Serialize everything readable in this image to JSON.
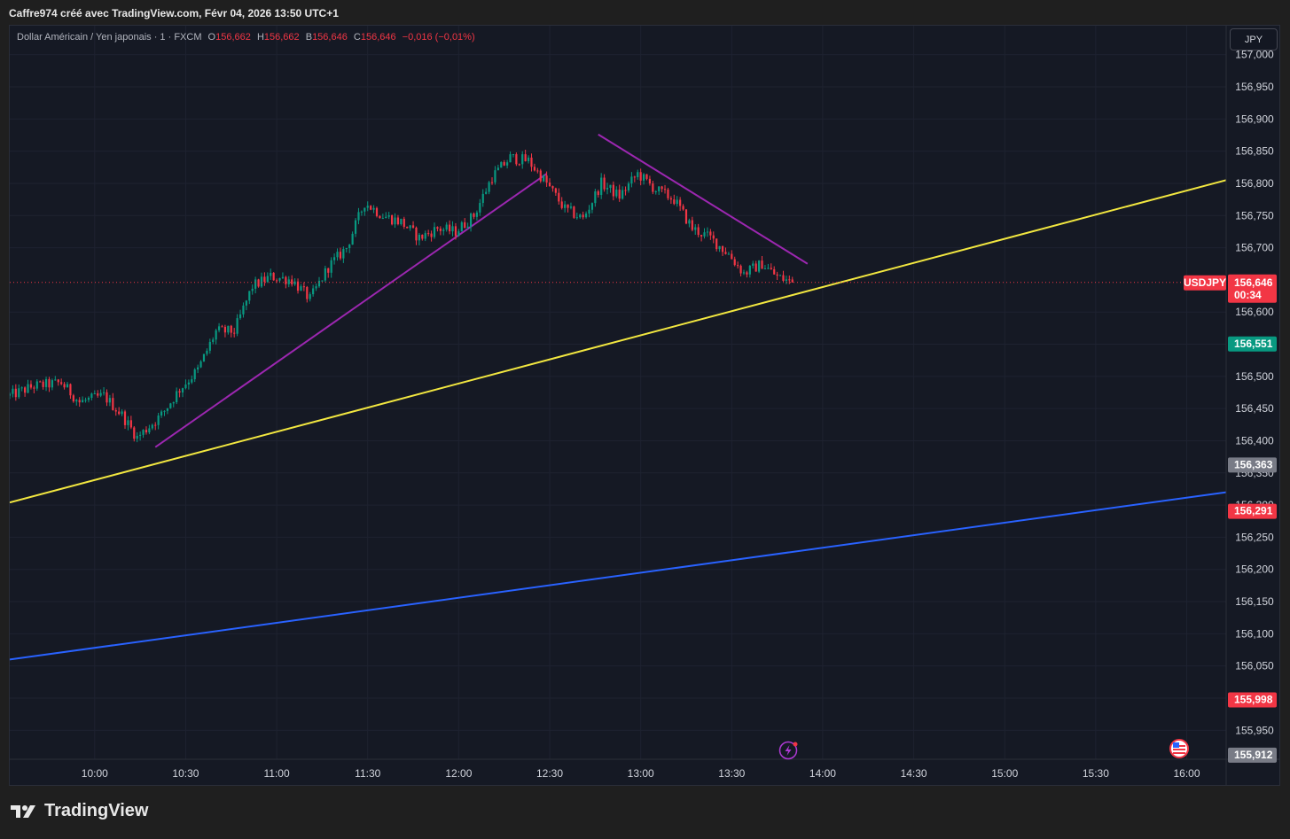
{
  "header": {
    "title": "Caffre974 créé avec TradingView.com, Févr 04, 2026 13:50 UTC+1"
  },
  "legend": {
    "symbol": "Dollar Américain / Yen japonais · 1 · FXCM",
    "o_label": "O",
    "o_value": "156,662",
    "h_label": "H",
    "h_value": "156,662",
    "b_label": "B",
    "b_value": "156,646",
    "c_label": "C",
    "c_value": "156,646",
    "change": "−0,016 (−0,01%)"
  },
  "currency_button": {
    "label": "JPY"
  },
  "footer": {
    "logo_text": "TradingView"
  },
  "colors": {
    "background": "#151924",
    "grid": "#1e2230",
    "up": "#089981",
    "down": "#f23645",
    "yellow_line": "#f2e740",
    "purple_line": "#9c27b0",
    "blue_line": "#2962ff"
  },
  "icons": {
    "footer": "tradingview-logo-icon",
    "lightning": "lightning-icon",
    "flag": "us-flag-icon"
  },
  "chart_data": {
    "type": "candlestick",
    "symbol": "USDJPY",
    "interval": "1",
    "ylim": [
      155.905,
      157.045
    ],
    "xlim": [
      "09:32",
      "16:13"
    ],
    "y_ticks": [
      "157,000",
      "156,950",
      "156,900",
      "156,850",
      "156,800",
      "156,750",
      "156,700",
      "156,600",
      "156,550",
      "156,500",
      "156,450",
      "156,400",
      "156,350",
      "156,300",
      "156,250",
      "156,200",
      "156,150",
      "156,100",
      "156,050",
      "156,000",
      "155,950"
    ],
    "y_tick_values": [
      157.0,
      156.95,
      156.9,
      156.85,
      156.8,
      156.75,
      156.7,
      156.6,
      156.55,
      156.5,
      156.45,
      156.4,
      156.35,
      156.3,
      156.25,
      156.2,
      156.15,
      156.1,
      156.05,
      156.0,
      155.95
    ],
    "x_ticks": [
      "10:00",
      "10:30",
      "11:00",
      "11:30",
      "12:00",
      "12:30",
      "13:00",
      "13:30",
      "14:00",
      "14:30",
      "15:00",
      "15:30",
      "16:00"
    ],
    "grid": true,
    "candle_anchors": [
      {
        "t": "09:32",
        "p": 156.47
      },
      {
        "t": "09:40",
        "p": 156.485
      },
      {
        "t": "09:49",
        "p": 156.49
      },
      {
        "t": "09:55",
        "p": 156.46
      },
      {
        "t": "10:03",
        "p": 156.47
      },
      {
        "t": "10:09",
        "p": 156.44
      },
      {
        "t": "10:14",
        "p": 156.405
      },
      {
        "t": "10:22",
        "p": 156.44
      },
      {
        "t": "10:28",
        "p": 156.48
      },
      {
        "t": "10:34",
        "p": 156.51
      },
      {
        "t": "10:40",
        "p": 156.57
      },
      {
        "t": "10:46",
        "p": 156.57
      },
      {
        "t": "10:52",
        "p": 156.64
      },
      {
        "t": "10:58",
        "p": 156.655
      },
      {
        "t": "11:05",
        "p": 156.65
      },
      {
        "t": "11:11",
        "p": 156.62
      },
      {
        "t": "11:17",
        "p": 156.67
      },
      {
        "t": "11:23",
        "p": 156.7
      },
      {
        "t": "11:29",
        "p": 156.77
      },
      {
        "t": "11:35",
        "p": 156.75
      },
      {
        "t": "11:41",
        "p": 156.74
      },
      {
        "t": "11:47",
        "p": 156.715
      },
      {
        "t": "11:53",
        "p": 156.73
      },
      {
        "t": "11:59",
        "p": 156.725
      },
      {
        "t": "12:05",
        "p": 156.75
      },
      {
        "t": "12:11",
        "p": 156.81
      },
      {
        "t": "12:17",
        "p": 156.84
      },
      {
        "t": "12:23",
        "p": 156.835
      },
      {
        "t": "12:29",
        "p": 156.8
      },
      {
        "t": "12:35",
        "p": 156.76
      },
      {
        "t": "12:41",
        "p": 156.745
      },
      {
        "t": "12:47",
        "p": 156.8
      },
      {
        "t": "12:53",
        "p": 156.78
      },
      {
        "t": "12:59",
        "p": 156.815
      },
      {
        "t": "13:05",
        "p": 156.79
      },
      {
        "t": "13:11",
        "p": 156.775
      },
      {
        "t": "13:17",
        "p": 156.73
      },
      {
        "t": "13:23",
        "p": 156.715
      },
      {
        "t": "13:29",
        "p": 156.69
      },
      {
        "t": "13:34",
        "p": 156.66
      },
      {
        "t": "13:40",
        "p": 156.675
      },
      {
        "t": "13:45",
        "p": 156.655
      },
      {
        "t": "13:50",
        "p": 156.646
      }
    ],
    "trendlines": [
      {
        "name": "yellow",
        "color": "#f2e740",
        "x1": "09:32",
        "y1": 156.304,
        "x2": "16:13",
        "y2": 156.805
      },
      {
        "name": "purple-up",
        "color": "#9c27b0",
        "x1": "10:20",
        "y1": 156.39,
        "x2": "12:29",
        "y2": 156.815
      },
      {
        "name": "purple-down",
        "color": "#9c27b0",
        "x1": "12:46",
        "y1": 156.876,
        "x2": "13:55",
        "y2": 156.675
      },
      {
        "name": "blue",
        "color": "#2962ff",
        "x1": "09:32",
        "y1": 156.06,
        "x2": "16:13",
        "y2": 156.32
      }
    ],
    "current_price": {
      "value": "156,646",
      "label": "USDJPY",
      "countdown": "00:34",
      "y": 156.646
    },
    "price_badges": [
      {
        "value": "156,551",
        "y": 156.551,
        "color": "#089981"
      },
      {
        "value": "156,363",
        "y": 156.363,
        "color": "#787b86"
      },
      {
        "value": "156,291",
        "y": 156.291,
        "color": "#f23645"
      },
      {
        "value": "155,998",
        "y": 155.998,
        "color": "#f23645"
      },
      {
        "value": "155,912",
        "y": 155.912,
        "color": "#787b86"
      }
    ]
  }
}
